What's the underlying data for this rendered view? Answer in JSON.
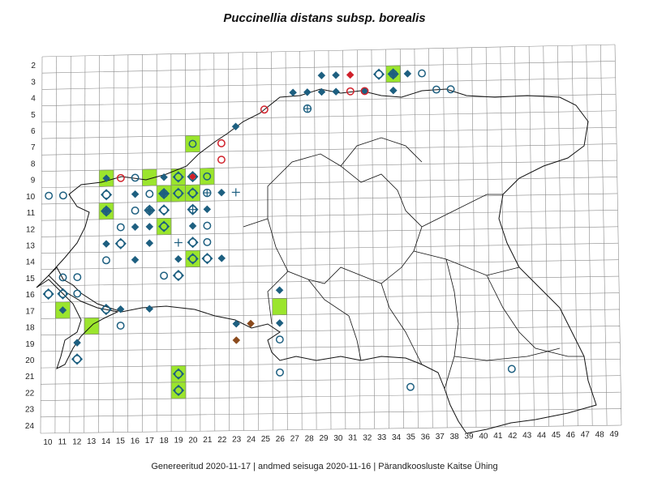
{
  "title": "Puccinellia distans subsp. borealis",
  "footer": "Genereeritud 2020-11-17  |  andmed seisuga 2020-11-16  |  Pärandkoosluste Kaitse Ühing",
  "axes": {
    "x_ticks": [
      "10",
      "11",
      "12",
      "13",
      "14",
      "15",
      "16",
      "17",
      "18",
      "19",
      "20",
      "21",
      "22",
      "23",
      "24",
      "25",
      "26",
      "27",
      "28",
      "29",
      "30",
      "31",
      "32",
      "33",
      "34",
      "35",
      "36",
      "37",
      "38",
      "39",
      "40",
      "41",
      "42",
      "43",
      "44",
      "45",
      "46",
      "47",
      "48",
      "49"
    ],
    "y_ticks": [
      "2",
      "3",
      "4",
      "5",
      "6",
      "7",
      "8",
      "9",
      "10",
      "11",
      "12",
      "13",
      "14",
      "15",
      "16",
      "17",
      "18",
      "19",
      "20",
      "21",
      "22",
      "23",
      "24"
    ]
  },
  "colors": {
    "grid": "#8a8a8a",
    "outline": "#111111",
    "green_cell": "#9be52d",
    "blue": "#1d5f80",
    "red": "#d0202a",
    "brown": "#8b4a1c"
  },
  "map_data": {
    "green_cells": [
      [
        34,
        3
      ],
      [
        20,
        7
      ],
      [
        14,
        9
      ],
      [
        17,
        9
      ],
      [
        19,
        9
      ],
      [
        21,
        9
      ],
      [
        18,
        10
      ],
      [
        19,
        10
      ],
      [
        20,
        10
      ],
      [
        14,
        11
      ],
      [
        18,
        12
      ],
      [
        20,
        14
      ],
      [
        11,
        17
      ],
      [
        13,
        18
      ],
      [
        26,
        17
      ],
      [
        19,
        21
      ],
      [
        19,
        22
      ]
    ],
    "markers": [
      {
        "type": "blue-diamond",
        "cells": [
          [
            29,
            3
          ],
          [
            30,
            3
          ],
          [
            34,
            3
          ],
          [
            35,
            3
          ],
          [
            27,
            4
          ],
          [
            28,
            4
          ],
          [
            29,
            4
          ],
          [
            30,
            4
          ],
          [
            32,
            4
          ],
          [
            34,
            4
          ],
          [
            23,
            6
          ],
          [
            14,
            9
          ],
          [
            18,
            9
          ],
          [
            16,
            10
          ],
          [
            18,
            10
          ],
          [
            22,
            10
          ],
          [
            14,
            11
          ],
          [
            17,
            11
          ],
          [
            21,
            11
          ],
          [
            16,
            12
          ],
          [
            17,
            12
          ],
          [
            20,
            12
          ],
          [
            14,
            13
          ],
          [
            17,
            13
          ],
          [
            16,
            14
          ],
          [
            19,
            14
          ],
          [
            22,
            14
          ],
          [
            17,
            17
          ],
          [
            15,
            17
          ],
          [
            26,
            16
          ],
          [
            23,
            18
          ],
          [
            26,
            18
          ],
          [
            12,
            19
          ],
          [
            11,
            17
          ]
        ]
      },
      {
        "type": "red-diamond",
        "cells": [
          [
            31,
            3
          ],
          [
            20,
            9
          ]
        ]
      },
      {
        "type": "brown-diamond",
        "cells": [
          [
            24,
            18
          ],
          [
            23,
            19
          ]
        ]
      },
      {
        "type": "blue-circle",
        "cells": [
          [
            37,
            4
          ],
          [
            38,
            4
          ],
          [
            36,
            3
          ],
          [
            10,
            10
          ],
          [
            11,
            10
          ],
          [
            16,
            9
          ],
          [
            17,
            10
          ],
          [
            16,
            11
          ],
          [
            15,
            12
          ],
          [
            21,
            12
          ],
          [
            21,
            13
          ],
          [
            14,
            14
          ],
          [
            11,
            15
          ],
          [
            12,
            15
          ],
          [
            12,
            16
          ],
          [
            18,
            15
          ],
          [
            15,
            18
          ],
          [
            26,
            19
          ],
          [
            26,
            21
          ],
          [
            35,
            22
          ],
          [
            42,
            21
          ],
          [
            20,
            7
          ],
          [
            21,
            9
          ]
        ]
      },
      {
        "type": "red-circle",
        "cells": [
          [
            31,
            4
          ],
          [
            32,
            4
          ],
          [
            25,
            5
          ],
          [
            22,
            7
          ],
          [
            22,
            8
          ],
          [
            15,
            9
          ]
        ]
      },
      {
        "type": "blue-circle-diamond",
        "cells": [
          [
            33,
            3
          ],
          [
            34,
            3
          ],
          [
            14,
            10
          ],
          [
            19,
            9
          ],
          [
            20,
            9
          ],
          [
            18,
            10
          ],
          [
            19,
            10
          ],
          [
            20,
            10
          ],
          [
            17,
            11
          ],
          [
            18,
            11
          ],
          [
            20,
            11
          ],
          [
            14,
            11
          ],
          [
            18,
            12
          ],
          [
            15,
            13
          ],
          [
            20,
            13
          ],
          [
            20,
            14
          ],
          [
            21,
            14
          ],
          [
            19,
            15
          ],
          [
            10,
            16
          ],
          [
            11,
            16
          ],
          [
            14,
            17
          ],
          [
            12,
            20
          ],
          [
            19,
            21
          ],
          [
            19,
            22
          ]
        ]
      },
      {
        "type": "blue-circle-cross",
        "cells": [
          [
            28,
            5
          ],
          [
            34,
            3
          ],
          [
            21,
            10
          ],
          [
            20,
            11
          ]
        ]
      },
      {
        "type": "blue-cross",
        "cells": [
          [
            19,
            13
          ],
          [
            23,
            10
          ]
        ]
      }
    ]
  }
}
